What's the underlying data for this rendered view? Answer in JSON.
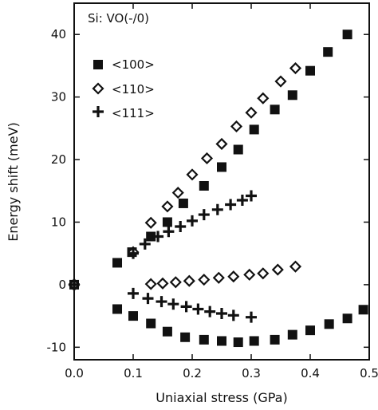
{
  "chart_data": {
    "type": "scatter",
    "title": "Si: VO(-/0)",
    "xlabel": "Uniaxial stress (GPa)",
    "ylabel": "Energy shift (meV)",
    "xlim": [
      0.0,
      0.5
    ],
    "ylim": [
      -12,
      45
    ],
    "xticks": [
      0.0,
      0.1,
      0.2,
      0.3,
      0.4,
      0.5
    ],
    "xtick_labels": [
      "0.0",
      "0.1",
      "0.2",
      "0.3",
      "0.4",
      "0.5"
    ],
    "yticks": [
      -10,
      0,
      10,
      20,
      30,
      40
    ],
    "ytick_labels": [
      "-10",
      "0",
      "10",
      "20",
      "30",
      "40"
    ],
    "grid": false,
    "legend_position": "top-left",
    "series": [
      {
        "name": "<100>",
        "marker": "filled-square",
        "color": "#111111",
        "points": [
          [
            0.0,
            0.0
          ],
          [
            0.073,
            3.5
          ],
          [
            0.098,
            5.2
          ],
          [
            0.13,
            7.7
          ],
          [
            0.158,
            10.0
          ],
          [
            0.185,
            13.0
          ],
          [
            0.22,
            15.8
          ],
          [
            0.25,
            18.8
          ],
          [
            0.278,
            21.6
          ],
          [
            0.305,
            24.8
          ],
          [
            0.34,
            28.0
          ],
          [
            0.37,
            30.3
          ],
          [
            0.4,
            34.2
          ],
          [
            0.43,
            37.2
          ],
          [
            0.463,
            40.0
          ],
          [
            0.073,
            -3.9
          ],
          [
            0.1,
            -5.0
          ],
          [
            0.13,
            -6.2
          ],
          [
            0.158,
            -7.5
          ],
          [
            0.188,
            -8.4
          ],
          [
            0.22,
            -8.8
          ],
          [
            0.25,
            -9.0
          ],
          [
            0.278,
            -9.2
          ],
          [
            0.305,
            -9.0
          ],
          [
            0.34,
            -8.8
          ],
          [
            0.37,
            -8.0
          ],
          [
            0.4,
            -7.3
          ],
          [
            0.432,
            -6.3
          ],
          [
            0.463,
            -5.4
          ],
          [
            0.49,
            -4.0
          ]
        ]
      },
      {
        "name": "<110>",
        "marker": "open-diamond",
        "color": "#111111",
        "points": [
          [
            0.0,
            0.0
          ],
          [
            0.1,
            5.2
          ],
          [
            0.13,
            9.9
          ],
          [
            0.158,
            12.5
          ],
          [
            0.176,
            14.7
          ],
          [
            0.2,
            17.6
          ],
          [
            0.225,
            20.2
          ],
          [
            0.25,
            22.5
          ],
          [
            0.275,
            25.3
          ],
          [
            0.3,
            27.5
          ],
          [
            0.32,
            29.8
          ],
          [
            0.35,
            32.5
          ],
          [
            0.375,
            34.6
          ],
          [
            0.13,
            0.1
          ],
          [
            0.15,
            0.2
          ],
          [
            0.172,
            0.4
          ],
          [
            0.195,
            0.6
          ],
          [
            0.22,
            0.8
          ],
          [
            0.245,
            1.1
          ],
          [
            0.27,
            1.3
          ],
          [
            0.297,
            1.6
          ],
          [
            0.32,
            1.8
          ],
          [
            0.345,
            2.4
          ],
          [
            0.375,
            2.9
          ]
        ]
      },
      {
        "name": "<111>",
        "marker": "plus",
        "color": "#111111",
        "points": [
          [
            0.0,
            0.0
          ],
          [
            0.1,
            5.0
          ],
          [
            0.12,
            6.5
          ],
          [
            0.142,
            7.7
          ],
          [
            0.16,
            8.5
          ],
          [
            0.18,
            9.3
          ],
          [
            0.2,
            10.2
          ],
          [
            0.22,
            11.2
          ],
          [
            0.243,
            12.0
          ],
          [
            0.265,
            12.8
          ],
          [
            0.285,
            13.5
          ],
          [
            0.3,
            14.2
          ],
          [
            0.1,
            -1.4
          ],
          [
            0.125,
            -2.2
          ],
          [
            0.148,
            -2.7
          ],
          [
            0.168,
            -3.1
          ],
          [
            0.19,
            -3.5
          ],
          [
            0.21,
            -3.9
          ],
          [
            0.23,
            -4.3
          ],
          [
            0.25,
            -4.6
          ],
          [
            0.27,
            -4.9
          ],
          [
            0.3,
            -5.2
          ]
        ]
      }
    ]
  }
}
